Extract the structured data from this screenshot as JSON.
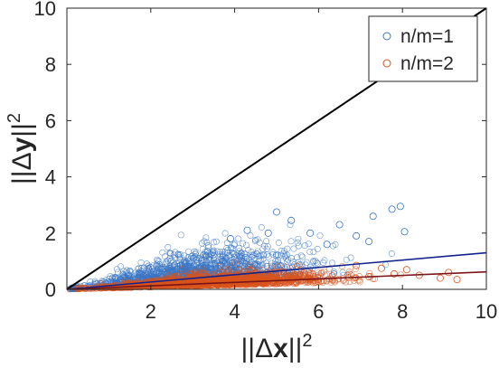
{
  "chart_data": {
    "type": "scatter",
    "xlabel_main": "||Δ",
    "xlabel_bold": "x",
    "xlabel_tail": "||",
    "xlabel_exp": "2",
    "ylabel_main": "||Δ",
    "ylabel_bold": "y",
    "ylabel_tail": "||",
    "ylabel_exp": "2",
    "xlim": [
      0,
      10
    ],
    "ylim": [
      0,
      10
    ],
    "xticks": [
      2,
      4,
      6,
      8,
      10
    ],
    "yticks": [
      0,
      2,
      4,
      6,
      8,
      10
    ],
    "grid": false,
    "legend_position": "top-right",
    "series": [
      {
        "name": "n/m=1",
        "color": "#3a76c4",
        "marker": "circle-open",
        "trend_color": "#14238c",
        "trend_slope": 0.13,
        "cloud_center_x": 3.0,
        "cloud_max_x": 8.2,
        "sample_points": [
          [
            5.0,
            2.75
          ],
          [
            5.35,
            2.45
          ],
          [
            6.5,
            2.3
          ],
          [
            7.3,
            2.6
          ],
          [
            7.75,
            2.85
          ],
          [
            7.95,
            2.95
          ],
          [
            6.9,
            1.9
          ],
          [
            5.8,
            2.0
          ],
          [
            7.2,
            1.7
          ],
          [
            8.05,
            2.05
          ],
          [
            4.8,
            2.0
          ],
          [
            6.2,
            1.6
          ],
          [
            3.9,
            1.8
          ],
          [
            4.3,
            2.1
          ]
        ]
      },
      {
        "name": "n/m=2",
        "color": "#d9541c",
        "marker": "circle-open",
        "trend_color": "#7a1519",
        "trend_slope": 0.062,
        "cloud_center_x": 3.5,
        "cloud_max_x": 9.5,
        "sample_points": [
          [
            7.5,
            0.75
          ],
          [
            8.1,
            0.7
          ],
          [
            7.8,
            0.55
          ],
          [
            8.4,
            0.5
          ],
          [
            8.9,
            0.4
          ],
          [
            9.3,
            0.35
          ],
          [
            9.1,
            0.6
          ],
          [
            6.9,
            0.85
          ],
          [
            7.2,
            0.45
          ]
        ]
      }
    ],
    "reference_line": {
      "color": "#000000",
      "slope": 1
    }
  }
}
